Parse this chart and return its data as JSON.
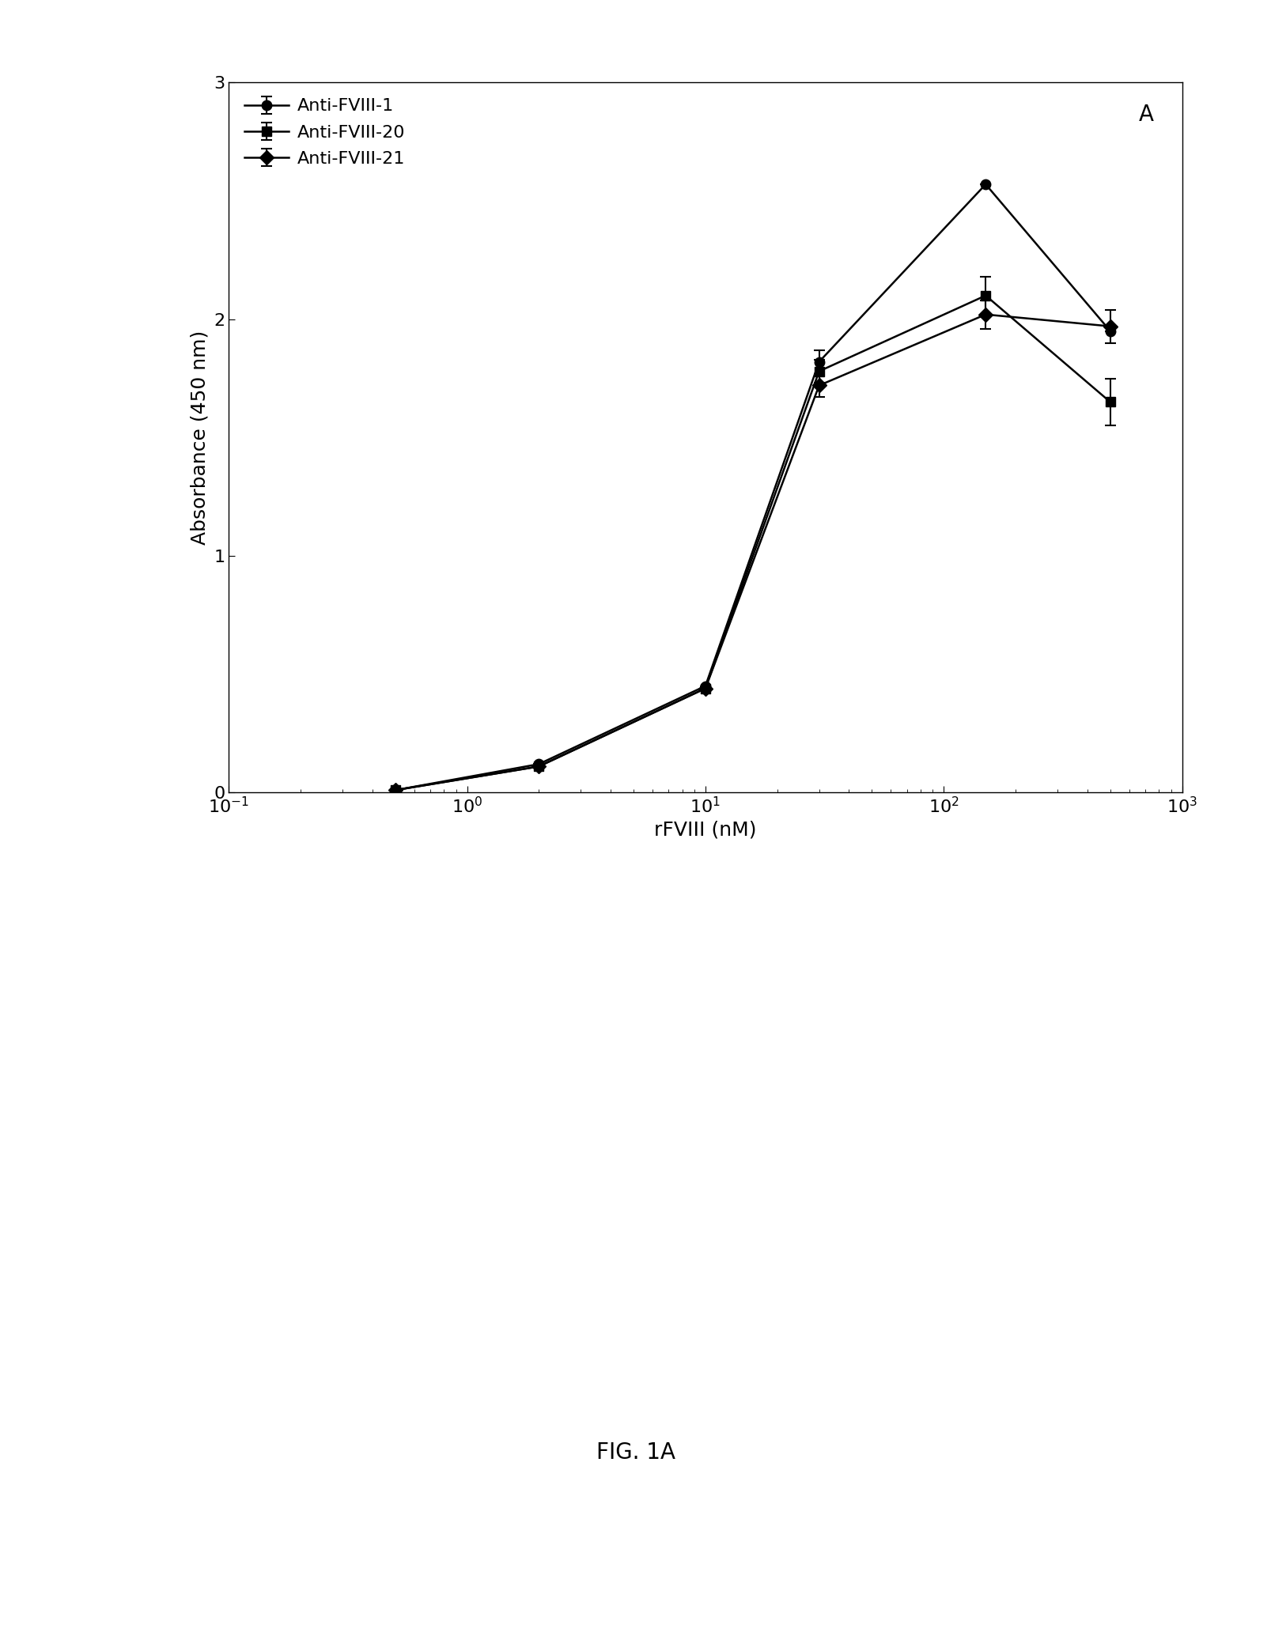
{
  "x_values": [
    0.5,
    2,
    10,
    30,
    150,
    500
  ],
  "series": [
    {
      "label": "Anti-FVIII-1",
      "marker": "o",
      "y": [
        0.01,
        0.12,
        0.45,
        1.82,
        2.57,
        1.95
      ],
      "yerr": [
        0.0,
        0.0,
        0.0,
        0.05,
        0.0,
        0.0
      ]
    },
    {
      "label": "Anti-FVIII-20",
      "marker": "s",
      "y": [
        0.01,
        0.11,
        0.44,
        1.78,
        2.1,
        1.65
      ],
      "yerr": [
        0.0,
        0.0,
        0.0,
        0.05,
        0.08,
        0.1
      ]
    },
    {
      "label": "Anti-FVIII-21",
      "marker": "D",
      "y": [
        0.01,
        0.11,
        0.44,
        1.72,
        2.02,
        1.97
      ],
      "yerr": [
        0.0,
        0.0,
        0.0,
        0.05,
        0.06,
        0.07
      ]
    }
  ],
  "xlabel": "rFVIII (nM)",
  "ylabel": "Absorbance (450 nm)",
  "ylim": [
    0,
    3
  ],
  "xlim_log": [
    -0.3,
    3
  ],
  "yticks": [
    0,
    1,
    2,
    3
  ],
  "panel_label": "A",
  "fig_label": "FIG. 1A",
  "line_color": "black",
  "background_color": "white",
  "title_fontsize": 18,
  "label_fontsize": 18,
  "tick_fontsize": 16,
  "legend_fontsize": 16,
  "marker_size": 9,
  "line_width": 1.8
}
